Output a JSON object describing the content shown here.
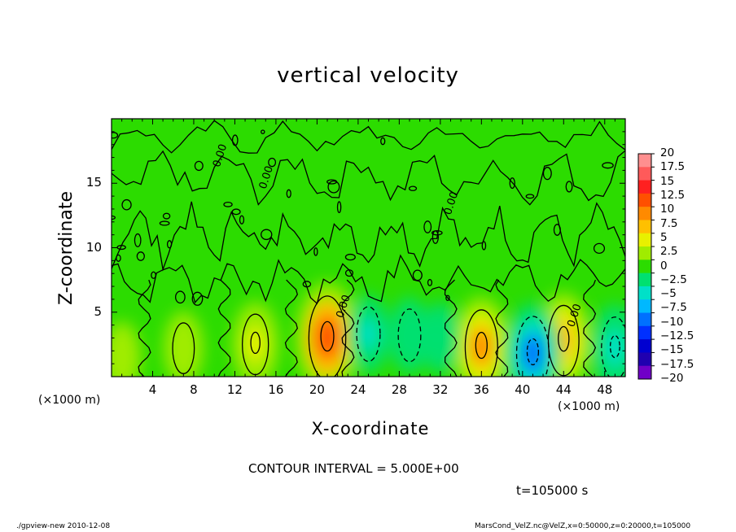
{
  "chart_data": {
    "type": "heatmap",
    "title": "vertical velocity",
    "xlabel": "X-coordinate",
    "ylabel": "Z-coordinate",
    "x_unit_left": "(×1000 m)",
    "x_unit_right": "(×1000 m)",
    "xlim": [
      0,
      50
    ],
    "ylim": [
      0,
      20
    ],
    "x_ticks": [
      "4",
      "8",
      "12",
      "16",
      "20",
      "24",
      "28",
      "32",
      "36",
      "40",
      "44",
      "48"
    ],
    "y_ticks": [
      "5",
      "10",
      "15"
    ],
    "contour_label": "0.00",
    "colorbar": {
      "labels": [
        "20",
        "17.5",
        "15",
        "12.5",
        "10",
        "7.5",
        "5",
        "2.5",
        "0",
        "−2.5",
        "−5",
        "−7.5",
        "−10",
        "−12.5",
        "−15",
        "−17.5",
        "−20"
      ],
      "colors": [
        "#ff8f8f",
        "#ff5a5a",
        "#ff2020",
        "#ff5000",
        "#ff8a00",
        "#ffc000",
        "#e8f000",
        "#a0ec00",
        "#2cdc00",
        "#00e070",
        "#00e0c8",
        "#00b8ff",
        "#0070ff",
        "#0030ff",
        "#0000d0",
        "#2000b0",
        "#7000c8"
      ]
    },
    "features": [
      {
        "x": 14,
        "z": 2.5,
        "w": 5.5
      },
      {
        "x": 21,
        "z": 3.0,
        "w": 11.5
      },
      {
        "x": 36,
        "z": 2.3,
        "w": 9.0
      },
      {
        "x": 44,
        "z": 2.8,
        "w": 8.0
      },
      {
        "x": 41,
        "z": 1.8,
        "w": -9.0
      },
      {
        "x": 49,
        "z": 2.2,
        "w": -6.0
      },
      {
        "x": 25,
        "z": 3.3,
        "w": -4.0
      },
      {
        "x": 29,
        "z": 3.2,
        "w": -3.5
      },
      {
        "x": 7,
        "z": 2.2,
        "w": 3.0
      },
      {
        "x": 1,
        "z": 1.5,
        "w": 2.5
      },
      {
        "x": 32,
        "z": 3.0,
        "w": -2.5
      }
    ],
    "contour_interval": "CONTOUR INTERVAL = 5.000E+00",
    "time": "t=105000 s"
  },
  "footer": {
    "program": "./gpview-new  2010-12-08",
    "file": "MarsCond_VelZ.nc@VelZ,x=0:50000,z=0:20000,t=105000"
  }
}
